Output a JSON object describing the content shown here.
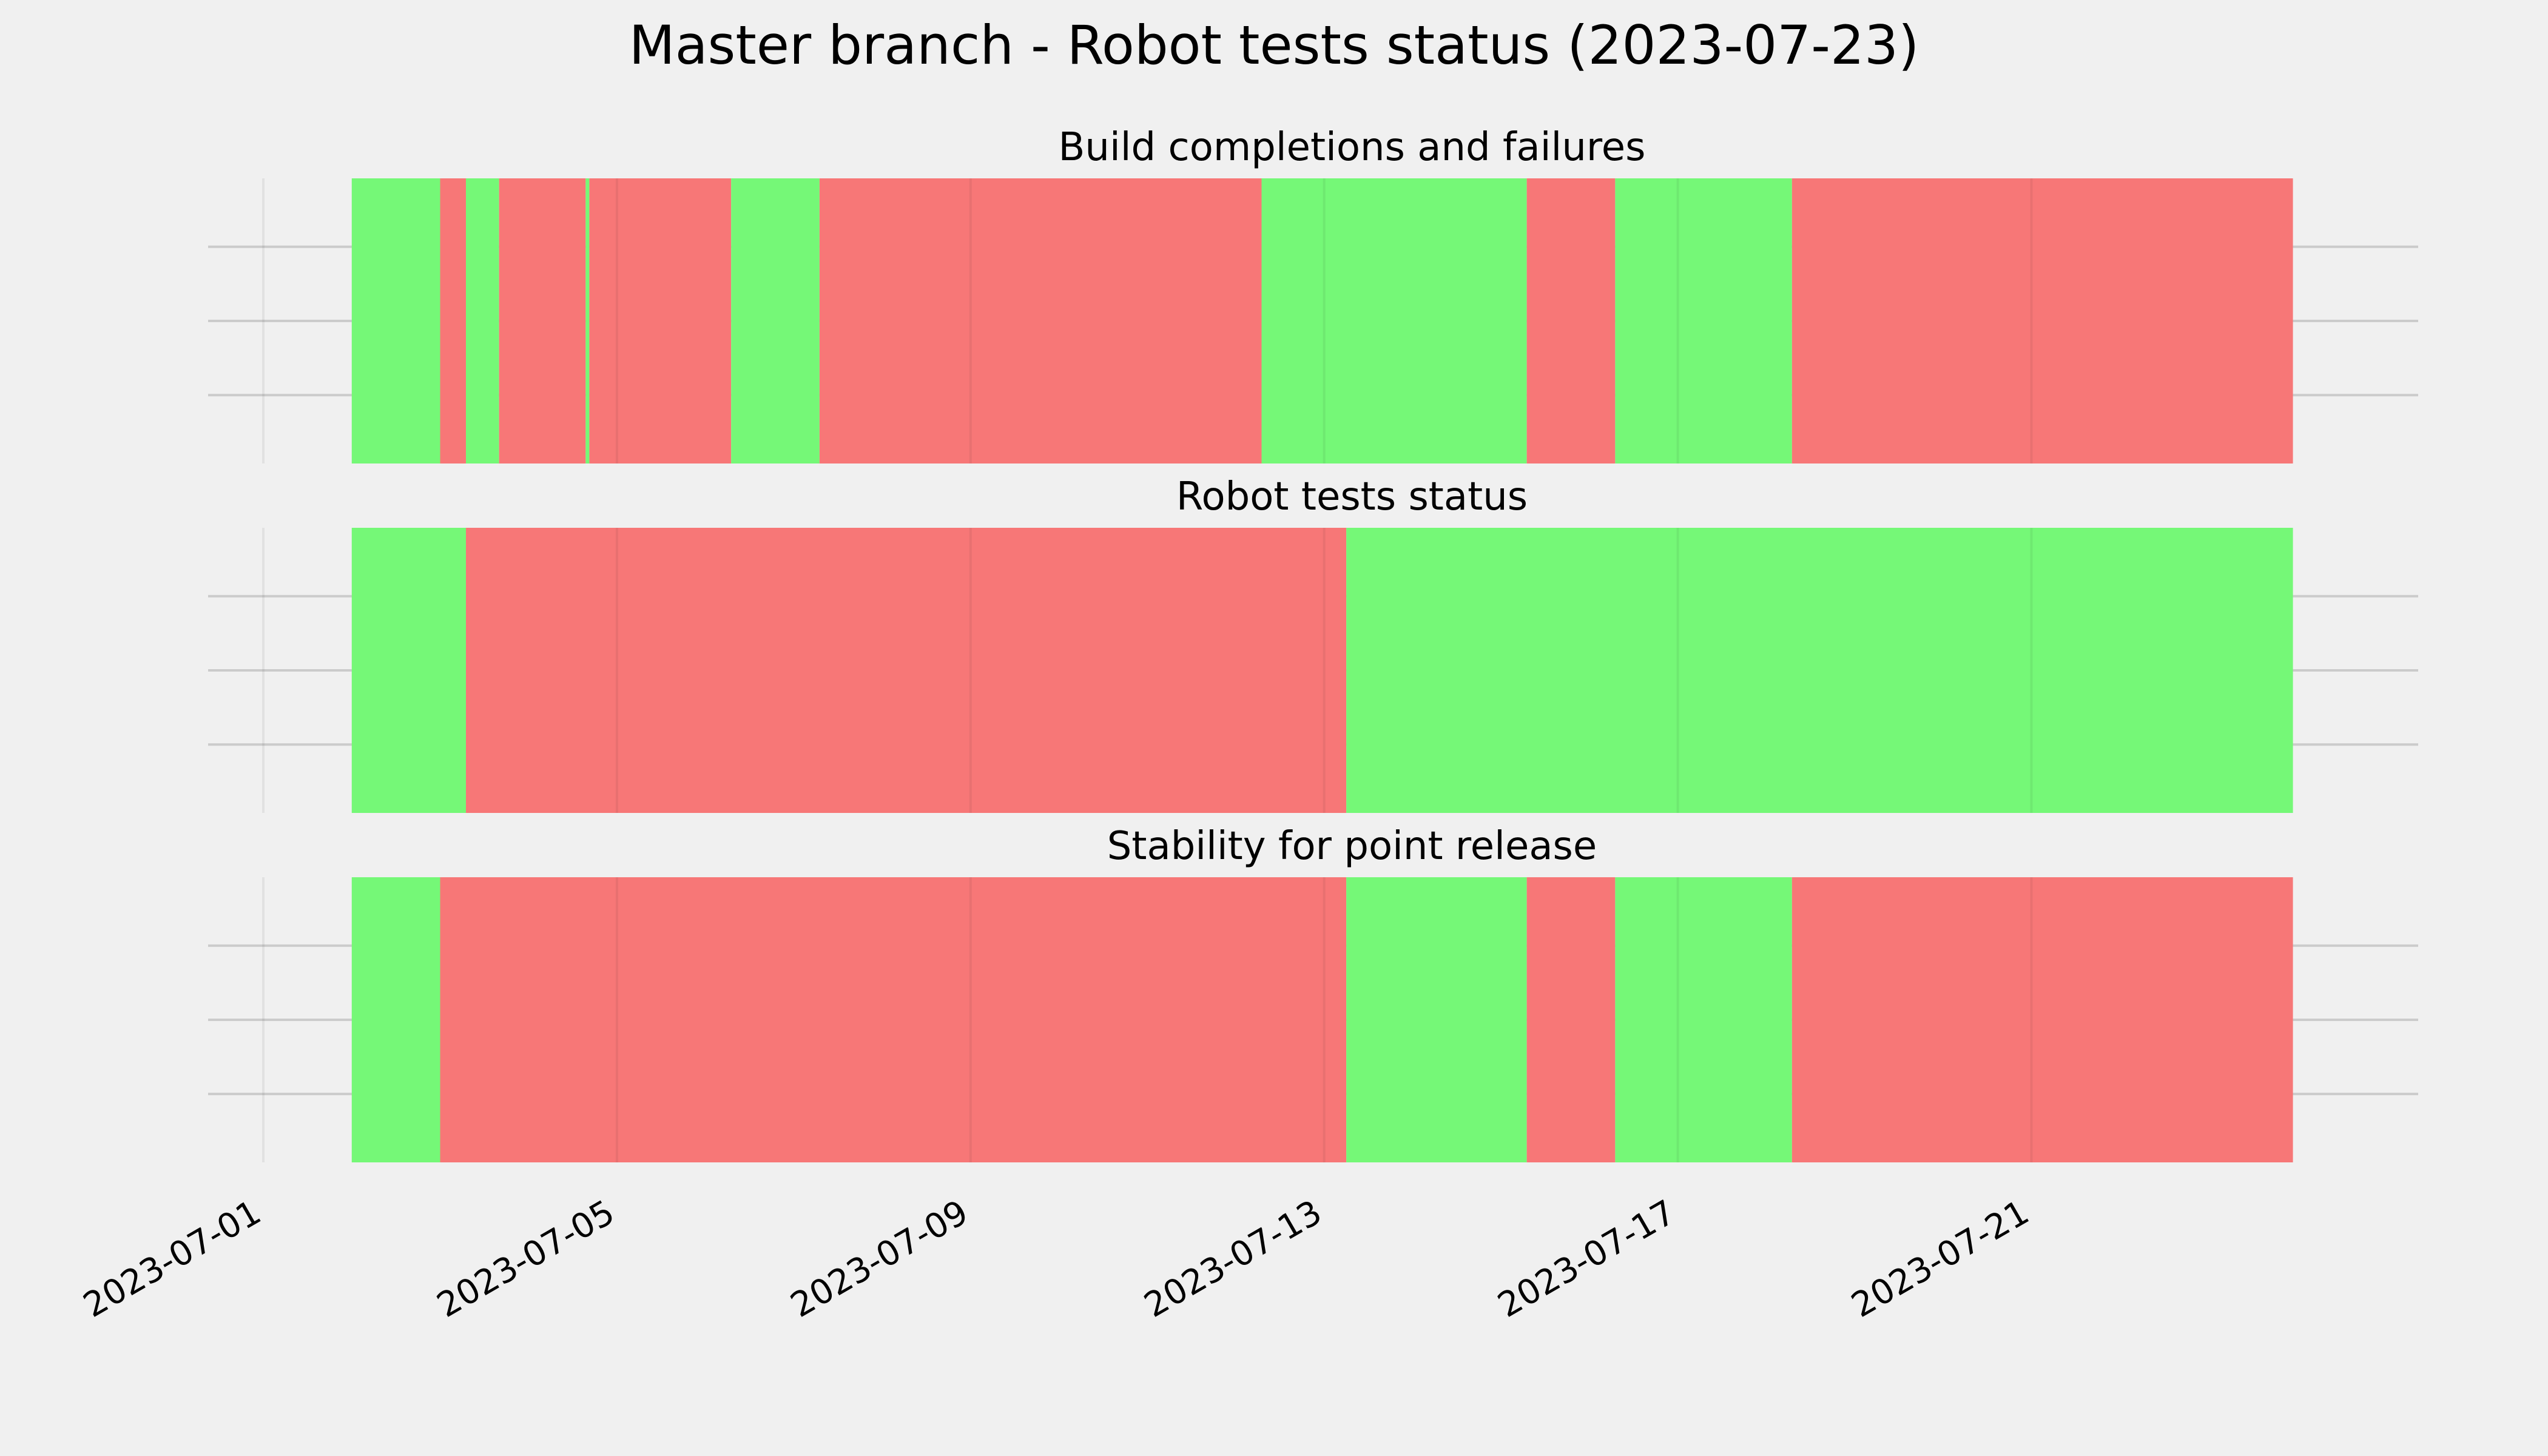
{
  "title": "Master branch - Robot tests status (2023-07-23)",
  "colors": {
    "background": "#f0f0f0",
    "pass": "#75f877",
    "fail": "#f77777",
    "grid": "#cbcbcb"
  },
  "chart_data": {
    "type": "timeline",
    "x_axis": {
      "range": [
        "2023-06-30T09:00",
        "2023-07-25T09:00"
      ],
      "ticks": [
        "2023-07-01",
        "2023-07-05",
        "2023-07-09",
        "2023-07-13",
        "2023-07-17",
        "2023-07-21"
      ],
      "tick_rotation": -30
    },
    "grid": true,
    "legend": "none",
    "panels": [
      {
        "title": "Build completions and failures",
        "segments": [
          {
            "start": "2023-07-02T00:00",
            "end": "2023-07-03T00:00",
            "status": "pass"
          },
          {
            "start": "2023-07-03T00:00",
            "end": "2023-07-03T07:00",
            "status": "fail"
          },
          {
            "start": "2023-07-03T07:00",
            "end": "2023-07-03T16:00",
            "status": "pass"
          },
          {
            "start": "2023-07-03T16:00",
            "end": "2023-07-04T15:30",
            "status": "fail"
          },
          {
            "start": "2023-07-04T15:30",
            "end": "2023-07-04T16:30",
            "status": "pass"
          },
          {
            "start": "2023-07-04T16:30",
            "end": "2023-07-06T07:00",
            "status": "fail"
          },
          {
            "start": "2023-07-06T07:00",
            "end": "2023-07-07T07:00",
            "status": "pass"
          },
          {
            "start": "2023-07-07T07:00",
            "end": "2023-07-12T07:00",
            "status": "fail"
          },
          {
            "start": "2023-07-12T07:00",
            "end": "2023-07-15T07:00",
            "status": "pass"
          },
          {
            "start": "2023-07-15T07:00",
            "end": "2023-07-16T07:00",
            "status": "fail"
          },
          {
            "start": "2023-07-16T07:00",
            "end": "2023-07-18T07:00",
            "status": "pass"
          },
          {
            "start": "2023-07-18T07:00",
            "end": "2023-07-23T23:00",
            "status": "fail"
          }
        ]
      },
      {
        "title": "Robot tests status",
        "segments": [
          {
            "start": "2023-07-02T00:00",
            "end": "2023-07-03T07:00",
            "status": "pass"
          },
          {
            "start": "2023-07-03T07:00",
            "end": "2023-07-13T06:00",
            "status": "fail"
          },
          {
            "start": "2023-07-13T06:00",
            "end": "2023-07-23T23:00",
            "status": "pass"
          }
        ]
      },
      {
        "title": "Stability for point release",
        "segments": [
          {
            "start": "2023-07-02T00:00",
            "end": "2023-07-03T00:00",
            "status": "pass"
          },
          {
            "start": "2023-07-03T00:00",
            "end": "2023-07-13T06:00",
            "status": "fail"
          },
          {
            "start": "2023-07-13T06:00",
            "end": "2023-07-15T07:00",
            "status": "pass"
          },
          {
            "start": "2023-07-15T07:00",
            "end": "2023-07-16T07:00",
            "status": "fail"
          },
          {
            "start": "2023-07-16T07:00",
            "end": "2023-07-18T07:00",
            "status": "pass"
          },
          {
            "start": "2023-07-18T07:00",
            "end": "2023-07-23T23:00",
            "status": "fail"
          }
        ]
      }
    ]
  }
}
